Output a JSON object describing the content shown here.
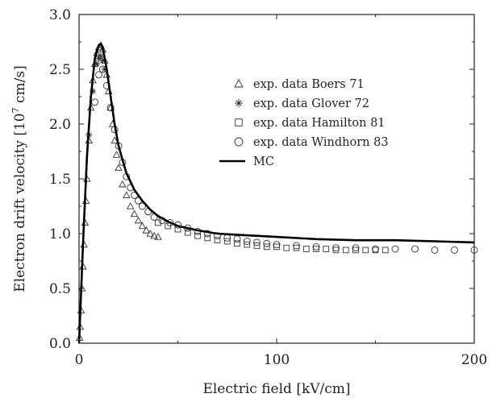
{
  "chart_data": {
    "type": "scatter",
    "xlabel": "Electric field [kV/cm]",
    "ylabel": "Electron drift velocity [10",
    "ylabel_sup": "7",
    "ylabel_tail": " cm/s]",
    "xlim": [
      0,
      200
    ],
    "ylim": [
      0,
      3.0
    ],
    "xticks": [
      "0",
      "100",
      "200"
    ],
    "xtick_values": [
      0,
      100,
      200
    ],
    "yticks": [
      "0.0",
      "0.5",
      "1.0",
      "1.5",
      "2.0",
      "2.5",
      "3.0"
    ],
    "ytick_values": [
      0,
      0.5,
      1.0,
      1.5,
      2.0,
      2.5,
      3.0
    ],
    "grid": false,
    "legend_position": "top-right",
    "series": [
      {
        "name": "exp. data Boers 71",
        "marker": "triangle",
        "x": [
          0.3,
          0.6,
          1,
          1.5,
          2,
          2.5,
          3,
          3.5,
          4,
          5,
          6,
          7,
          8,
          9,
          10,
          11,
          12,
          13,
          14,
          15,
          16,
          17,
          18,
          19,
          20,
          22,
          24,
          26,
          28,
          30,
          32,
          34,
          36,
          38,
          40
        ],
        "y": [
          0.05,
          0.15,
          0.3,
          0.5,
          0.7,
          0.9,
          1.1,
          1.3,
          1.5,
          1.85,
          2.15,
          2.4,
          2.55,
          2.65,
          2.7,
          2.72,
          2.68,
          2.58,
          2.45,
          2.3,
          2.15,
          2.0,
          1.85,
          1.72,
          1.6,
          1.45,
          1.35,
          1.25,
          1.18,
          1.12,
          1.07,
          1.03,
          1.0,
          0.98,
          0.97
        ]
      },
      {
        "name": "exp. data Glover 72",
        "marker": "star",
        "x": [
          5,
          7,
          9,
          10,
          11,
          12,
          13
        ],
        "y": [
          1.9,
          2.3,
          2.55,
          2.6,
          2.62,
          2.58,
          2.5
        ]
      },
      {
        "name": "exp. data Hamilton 81",
        "marker": "square",
        "x": [
          40,
          45,
          50,
          55,
          60,
          65,
          70,
          75,
          80,
          85,
          90,
          95,
          100,
          105,
          110,
          115,
          120,
          125,
          130,
          135,
          140,
          145,
          150,
          155
        ],
        "y": [
          1.1,
          1.07,
          1.04,
          1.01,
          0.98,
          0.96,
          0.94,
          0.93,
          0.91,
          0.9,
          0.89,
          0.88,
          0.88,
          0.87,
          0.87,
          0.86,
          0.86,
          0.86,
          0.85,
          0.85,
          0.85,
          0.85,
          0.85,
          0.85
        ]
      },
      {
        "name": "exp. data Windhorn 83",
        "marker": "circle",
        "x": [
          8,
          10,
          12,
          14,
          16,
          18,
          20,
          22,
          24,
          26,
          28,
          30,
          32,
          35,
          38,
          42,
          46,
          50,
          55,
          60,
          65,
          70,
          75,
          80,
          85,
          90,
          95,
          100,
          110,
          120,
          130,
          140,
          150,
          160,
          170,
          180,
          190,
          200
        ],
        "y": [
          2.2,
          2.45,
          2.5,
          2.35,
          2.15,
          1.95,
          1.8,
          1.65,
          1.52,
          1.42,
          1.35,
          1.3,
          1.25,
          1.2,
          1.15,
          1.12,
          1.1,
          1.08,
          1.05,
          1.02,
          1.0,
          0.98,
          0.96,
          0.95,
          0.93,
          0.92,
          0.91,
          0.9,
          0.89,
          0.88,
          0.87,
          0.87,
          0.86,
          0.86,
          0.86,
          0.85,
          0.85,
          0.85
        ]
      },
      {
        "name": "MC",
        "marker": "line",
        "x": [
          0,
          2,
          4,
          6,
          8,
          10,
          11,
          12,
          14,
          16,
          18,
          20,
          24,
          28,
          32,
          36,
          40,
          45,
          50,
          60,
          70,
          80,
          100,
          120,
          140,
          160,
          180,
          200
        ],
        "y": [
          0,
          0.9,
          1.7,
          2.25,
          2.6,
          2.72,
          2.73,
          2.7,
          2.5,
          2.25,
          2.0,
          1.8,
          1.55,
          1.4,
          1.3,
          1.22,
          1.16,
          1.11,
          1.07,
          1.03,
          1.0,
          0.99,
          0.97,
          0.95,
          0.94,
          0.94,
          0.93,
          0.92
        ]
      }
    ]
  }
}
